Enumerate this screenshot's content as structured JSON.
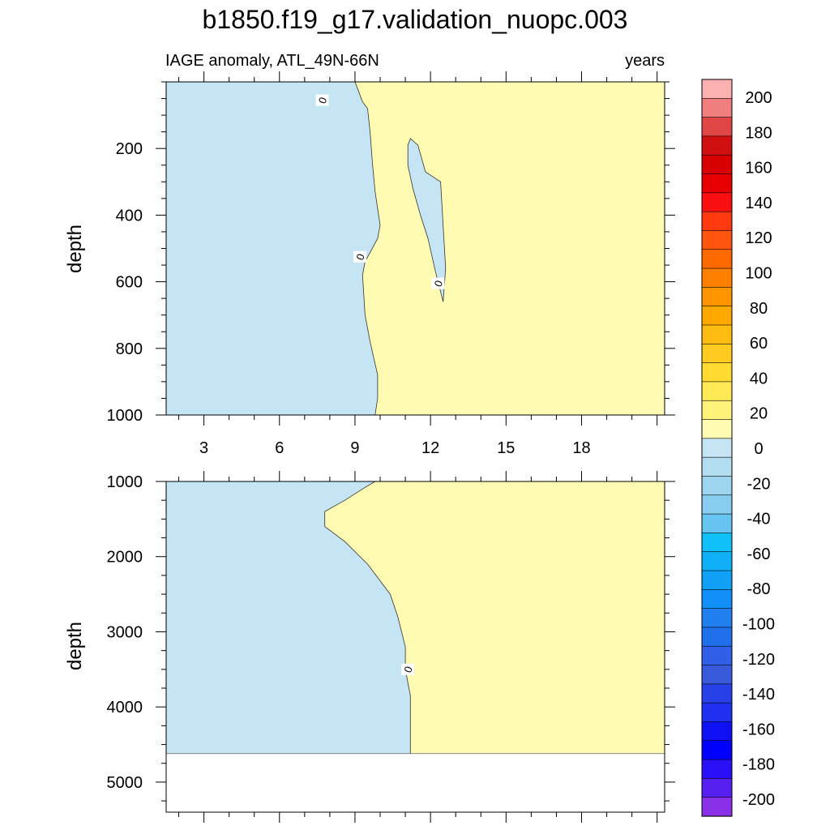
{
  "title": "b1850.f19_g17.validation_nuopc.003",
  "left_subtitle": "IAGE anomaly, ATL_49N-66N",
  "right_subtitle": "years",
  "colors": {
    "neg_fill": "#c5e5f5",
    "pos_fill": "#fffbb3",
    "contour_line": "#333333"
  },
  "chart_data": [
    {
      "type": "heatmap",
      "panel": "upper",
      "ylabel": "depth",
      "xlim": [
        1.5,
        21.3
      ],
      "ylim": [
        1000,
        0
      ],
      "x_ticks": [
        3,
        6,
        9,
        12,
        15,
        18
      ],
      "x_tick_labels": [
        "3",
        "6",
        "9",
        "12",
        "15",
        "18"
      ],
      "y_ticks": [
        200,
        400,
        600,
        800,
        1000
      ],
      "y_tick_labels": [
        "200",
        "400",
        "600",
        "800",
        "1000"
      ],
      "zero_contour_boundary": [
        [
          9.0,
          0
        ],
        [
          9.1,
          20
        ],
        [
          9.3,
          60
        ],
        [
          9.5,
          80
        ],
        [
          9.6,
          150
        ],
        [
          9.7,
          250
        ],
        [
          9.8,
          330
        ],
        [
          10.0,
          430
        ],
        [
          9.9,
          470
        ],
        [
          9.4,
          540
        ],
        [
          9.3,
          580
        ],
        [
          9.4,
          700
        ],
        [
          9.6,
          780
        ],
        [
          9.9,
          880
        ],
        [
          9.9,
          950
        ],
        [
          9.8,
          1000
        ]
      ],
      "negative_pocket": [
        [
          11.2,
          170
        ],
        [
          11.5,
          190
        ],
        [
          11.8,
          270
        ],
        [
          12.4,
          300
        ],
        [
          12.6,
          560
        ],
        [
          12.5,
          660
        ],
        [
          12.2,
          570
        ],
        [
          11.9,
          470
        ],
        [
          11.6,
          400
        ],
        [
          11.3,
          320
        ],
        [
          11.1,
          250
        ],
        [
          11.1,
          190
        ]
      ],
      "contour_labels": [
        {
          "x": 7.7,
          "y": 55,
          "text": "0"
        },
        {
          "x": 9.2,
          "y": 525,
          "text": "0"
        },
        {
          "x": 12.3,
          "y": 605,
          "text": "0"
        }
      ]
    },
    {
      "type": "heatmap",
      "panel": "lower",
      "ylabel": "depth",
      "xlim": [
        1.5,
        21.3
      ],
      "ylim": [
        5400,
        1000
      ],
      "data_max_depth": 4620,
      "x_ticks": [
        3,
        6,
        9,
        12,
        15,
        18
      ],
      "y_ticks": [
        1000,
        2000,
        3000,
        4000,
        5000
      ],
      "y_tick_labels": [
        "1000",
        "2000",
        "3000",
        "4000",
        "5000"
      ],
      "zero_contour_boundary": [
        [
          9.8,
          1000
        ],
        [
          9.3,
          1100
        ],
        [
          8.6,
          1250
        ],
        [
          7.8,
          1400
        ],
        [
          7.8,
          1600
        ],
        [
          8.6,
          1800
        ],
        [
          9.5,
          2100
        ],
        [
          10.4,
          2500
        ],
        [
          10.7,
          2800
        ],
        [
          11.0,
          3200
        ],
        [
          11.0,
          3500
        ],
        [
          11.2,
          3850
        ],
        [
          11.2,
          4620
        ]
      ],
      "contour_labels": [
        {
          "x": 11.1,
          "y": 3500,
          "text": "0"
        }
      ]
    }
  ],
  "colorbar": {
    "labels": [
      "200",
      "180",
      "160",
      "140",
      "120",
      "100",
      "80",
      "60",
      "40",
      "20",
      "0",
      "-20",
      "-40",
      "-60",
      "-80",
      "-100",
      "-120",
      "-140",
      "-160",
      "-180",
      "-200"
    ],
    "colors": [
      "#fcb1b1",
      "#f07e7e",
      "#e04646",
      "#d01010",
      "#d80000",
      "#e80000",
      "#fa1010",
      "#ff3a10",
      "#ff5510",
      "#ff6a00",
      "#ff8000",
      "#ff9500",
      "#ffa800",
      "#ffbc10",
      "#ffcb20",
      "#ffda30",
      "#ffe955",
      "#fff27a",
      "#fffbb3",
      "#c5e5f5",
      "#b3ddf0",
      "#9ed5ee",
      "#86cdef",
      "#68c5f2",
      "#10c0f8",
      "#10b0f8",
      "#10a0f8",
      "#1090f8",
      "#2080f0",
      "#2070ec",
      "#3060e8",
      "#3a5adc",
      "#2840e8",
      "#2030f0",
      "#1010f4",
      "#0000ff",
      "#2a10f8",
      "#5520f0",
      "#8a30e8"
    ]
  }
}
